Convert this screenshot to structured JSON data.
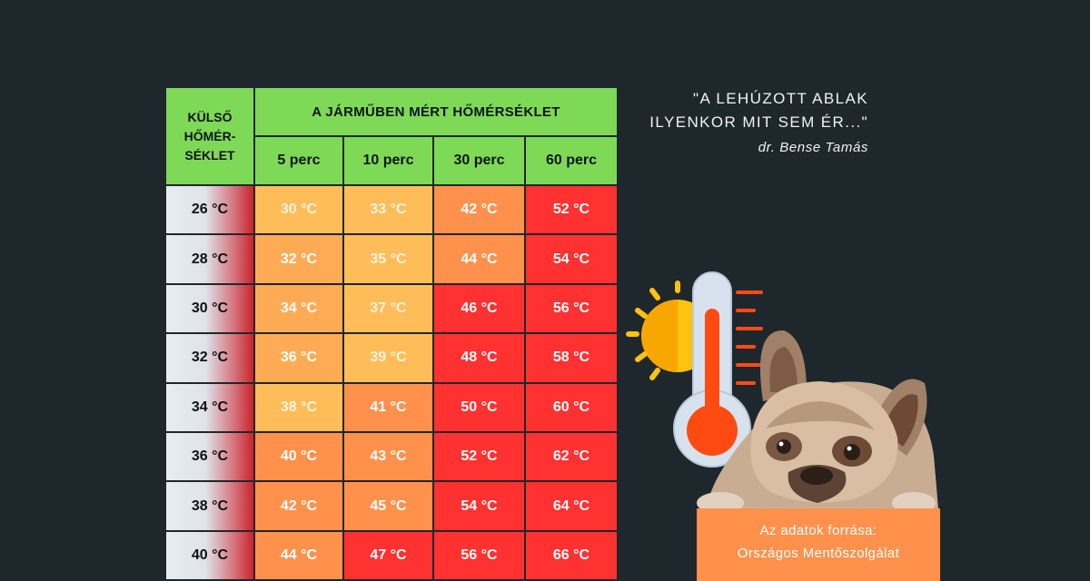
{
  "table": {
    "corner_header_lines": [
      "KÜLSŐ",
      "HŐMÉR-",
      "SÉKLET"
    ],
    "top_header": "A JÁRMŰBEN MÉRT HŐMÉRSÉKLET",
    "columns": [
      "5 perc",
      "10 perc",
      "30 perc",
      "60 perc"
    ],
    "rows": [
      {
        "outside": "26 °C",
        "values": [
          "30 °C",
          "33 °C",
          "42 °C",
          "52 °C"
        ]
      },
      {
        "outside": "28 °C",
        "values": [
          "32 °C",
          "35 °C",
          "44 °C",
          "54 °C"
        ]
      },
      {
        "outside": "30 °C",
        "values": [
          "34 °C",
          "37 °C",
          "46 °C",
          "56 °C"
        ]
      },
      {
        "outside": "32 °C",
        "values": [
          "36 °C",
          "39 °C",
          "48 °C",
          "58 °C"
        ]
      },
      {
        "outside": "34 °C",
        "values": [
          "38 °C",
          "41 °C",
          "50 °C",
          "60 °C"
        ]
      },
      {
        "outside": "36 °C",
        "values": [
          "40 °C",
          "43 °C",
          "52 °C",
          "62 °C"
        ]
      },
      {
        "outside": "38 °C",
        "values": [
          "42 °C",
          "45 °C",
          "54 °C",
          "64 °C"
        ]
      },
      {
        "outside": "40 °C",
        "values": [
          "44 °C",
          "47 °C",
          "56 °C",
          "66 °C"
        ]
      }
    ],
    "cell_levels": [
      [
        "yellow",
        "yellow",
        "orange",
        "red"
      ],
      [
        "orange",
        "yellow",
        "orange",
        "red"
      ],
      [
        "orange",
        "yellow",
        "red",
        "red"
      ],
      [
        "orange",
        "yellow",
        "red",
        "red"
      ],
      [
        "yellow",
        "orange",
        "red",
        "red"
      ],
      [
        "orange",
        "orange",
        "red",
        "red"
      ],
      [
        "orange",
        "orange",
        "red",
        "red"
      ],
      [
        "orange",
        "red",
        "red",
        "red"
      ]
    ],
    "colors": {
      "header": "#7ed957",
      "yellow": "#ffbd59",
      "orange": "#ff914d",
      "red": "#ff3131",
      "background": "#1e272c"
    }
  },
  "quote": {
    "line1": "\"A LEHÚZOTT ABLAK",
    "line2": "ILYENKOR MIT SEM ÉR...\"",
    "author": "dr. Bense Tamás"
  },
  "source": {
    "line1": "Az adatok forrása:",
    "line2": "Országos Mentőszolgálat"
  },
  "illustration": {
    "icons": [
      "sun-icon",
      "thermometer-icon",
      "french-bulldog-illustration"
    ]
  }
}
